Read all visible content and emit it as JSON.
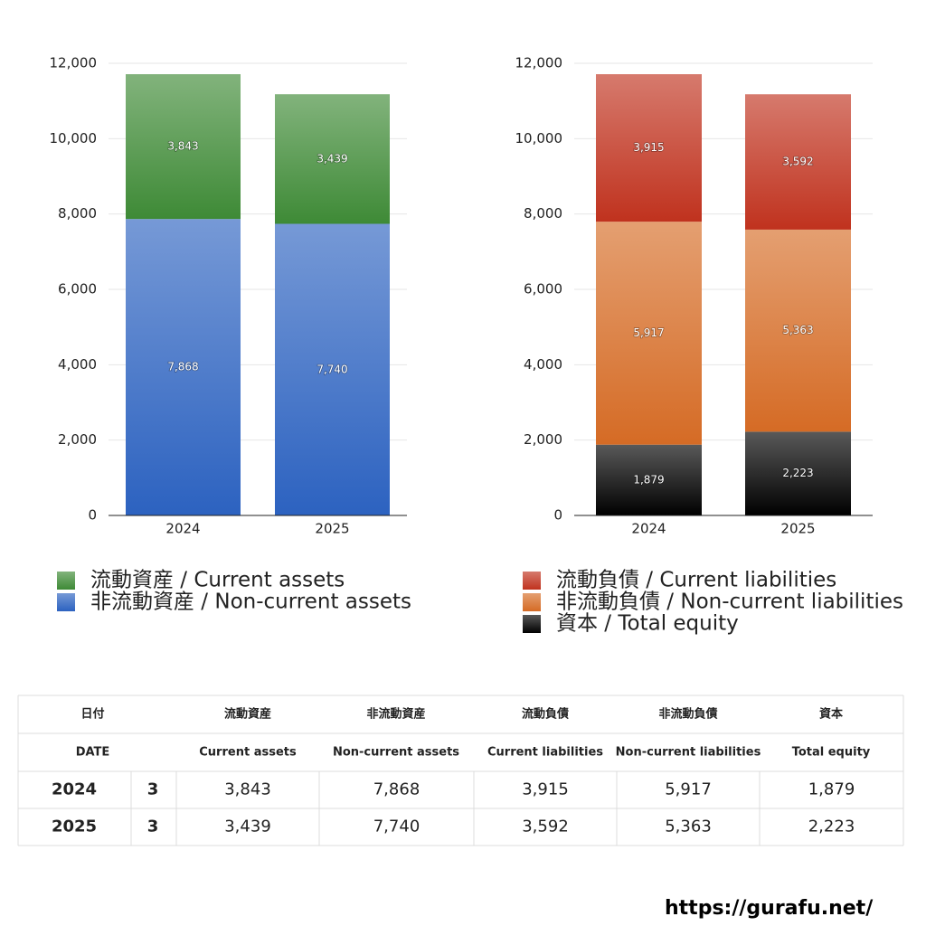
{
  "chart_data": [
    {
      "type": "bar",
      "stacked": true,
      "categories": [
        "2024",
        "2025"
      ],
      "series": [
        {
          "name": "流動資産 / Current assets",
          "color": "#3e8a36",
          "values": [
            3843,
            3439
          ],
          "value_labels": [
            "3,843",
            "3,439"
          ]
        },
        {
          "name": "非流動資産 / Non-current assets",
          "color": "#2c62c0",
          "values": [
            7868,
            7740
          ],
          "value_labels": [
            "7,868",
            "7,740"
          ]
        }
      ],
      "ylim": [
        0,
        12000
      ],
      "yticks": [
        0,
        {
          "value": 2000,
          "label": "2,000"
        },
        {
          "value": 4000,
          "label": "4,000"
        },
        {
          "value": 6000,
          "label": "6,000"
        },
        {
          "value": 8000,
          "label": "8,000"
        },
        {
          "value": 10000,
          "label": "10,000"
        },
        {
          "value": 12000,
          "label": "12,000"
        }
      ],
      "grid": true
    },
    {
      "type": "bar",
      "stacked": true,
      "categories": [
        "2024",
        "2025"
      ],
      "series": [
        {
          "name": "流動負債 / Current liabilities",
          "color": "#c0321e",
          "values": [
            3915,
            3592
          ],
          "value_labels": [
            "3,915",
            "3,592"
          ]
        },
        {
          "name": "非流動負債 / Non-current liabilities",
          "color": "#d56b25",
          "values": [
            5917,
            5363
          ],
          "value_labels": [
            "5,917",
            "5,363"
          ]
        },
        {
          "name": "資本 / Total equity",
          "color": "#000000",
          "values": [
            1879,
            2223
          ],
          "value_labels": [
            "1,879",
            "2,223"
          ]
        }
      ],
      "ylim": [
        0,
        12000
      ],
      "yticks": [
        0,
        {
          "value": 2000,
          "label": "2,000"
        },
        {
          "value": 4000,
          "label": "4,000"
        },
        {
          "value": 6000,
          "label": "6,000"
        },
        {
          "value": 8000,
          "label": "8,000"
        },
        {
          "value": 10000,
          "label": "10,000"
        },
        {
          "value": 12000,
          "label": "12,000"
        }
      ],
      "grid": true
    }
  ],
  "table": {
    "header_jp": [
      "日付",
      "流動資産",
      "非流動資産",
      "流動負債",
      "非流動負債",
      "資本"
    ],
    "header_en": [
      "DATE",
      "Current assets",
      "Non-current assets",
      "Current liabilities",
      "Non-current liabilities",
      "Total equity"
    ],
    "rows": [
      [
        "2024",
        "3",
        "3,843",
        "7,868",
        "3,915",
        "5,917",
        "1,879"
      ],
      [
        "2025",
        "3",
        "3,439",
        "7,740",
        "3,592",
        "5,363",
        "2,223"
      ]
    ]
  },
  "footer_url": "https://gurafu.net/"
}
